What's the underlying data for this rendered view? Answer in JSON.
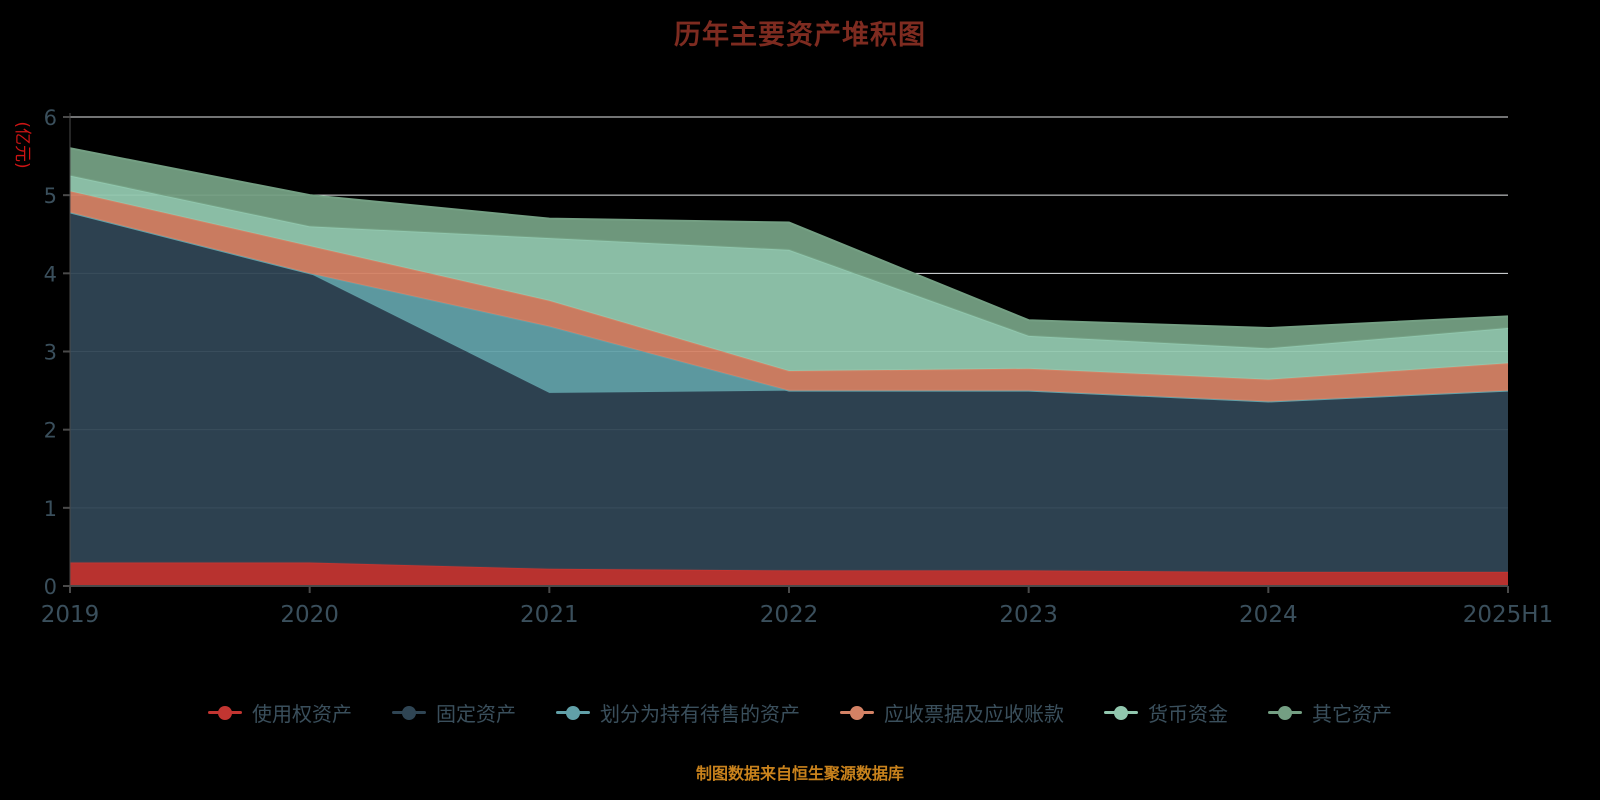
{
  "footer": "制图数据来自恒生聚源数据库",
  "colors": {
    "background": "#000000",
    "title": "#7e2b20",
    "axis_label": "#3a4f5c",
    "y_name": "#cc1414",
    "gridline": "#e3e6e8",
    "axis_line": "#4a4a4a",
    "legend_text": "#3a4f5c",
    "footer": "#c9821c"
  },
  "chart_data": {
    "type": "area",
    "stacked": true,
    "title": "历年主要资产堆积图",
    "y_name": "(亿元)",
    "xlabel": "",
    "ylabel": "亿元",
    "ylim": [
      0,
      6
    ],
    "y_ticks": [
      0,
      1,
      2,
      3,
      4,
      5,
      6
    ],
    "grid": true,
    "legend_position": "bottom",
    "categories": [
      "2019",
      "2020",
      "2021",
      "2022",
      "2023",
      "2024",
      "2025H1"
    ],
    "series": [
      {
        "name": "使用权资产",
        "color": "#c23531",
        "values": [
          0.3,
          0.3,
          0.22,
          0.2,
          0.2,
          0.18,
          0.18
        ]
      },
      {
        "name": "固定资产",
        "color": "#2f4554",
        "values": [
          4.48,
          3.7,
          2.25,
          2.3,
          2.3,
          2.18,
          2.32
        ]
      },
      {
        "name": "划分为持有待售的资产",
        "color": "#61a0a8",
        "values": [
          0.0,
          0.0,
          0.85,
          0.0,
          0.0,
          0.0,
          0.0
        ]
      },
      {
        "name": "应收票据及应收账款",
        "color": "#d48265",
        "values": [
          0.27,
          0.35,
          0.33,
          0.25,
          0.28,
          0.28,
          0.35
        ]
      },
      {
        "name": "货币资金",
        "color": "#91c7ae",
        "values": [
          0.2,
          0.25,
          0.8,
          1.55,
          0.42,
          0.4,
          0.45
        ]
      },
      {
        "name": "其它资产",
        "color": "#749f83",
        "values": [
          0.35,
          0.4,
          0.25,
          0.35,
          0.2,
          0.26,
          0.15
        ]
      }
    ]
  }
}
